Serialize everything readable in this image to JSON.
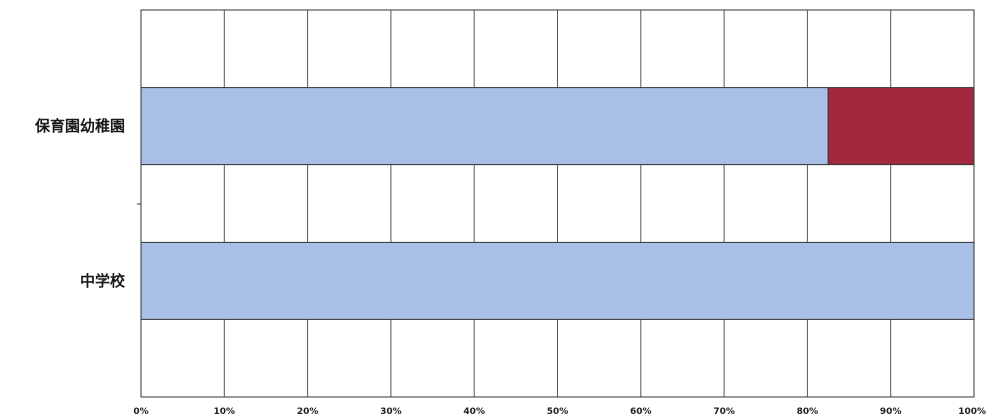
{
  "chart_data": {
    "type": "bar",
    "orientation": "horizontal",
    "stacked": true,
    "categories": [
      "保育園幼稚園",
      "中学校"
    ],
    "series": [
      {
        "color": "#a9bfe6",
        "values": [
          82.5,
          100
        ]
      },
      {
        "color": "#a3283f",
        "values": [
          17.5,
          0
        ]
      }
    ],
    "xlim": [
      0,
      100
    ],
    "xticks": [
      "0%",
      "10%",
      "20%",
      "30%",
      "40%",
      "50%",
      "60%",
      "70%",
      "80%",
      "90%",
      "100%"
    ],
    "xlabel": "",
    "ylabel": "",
    "grid": true,
    "legend": "none"
  }
}
